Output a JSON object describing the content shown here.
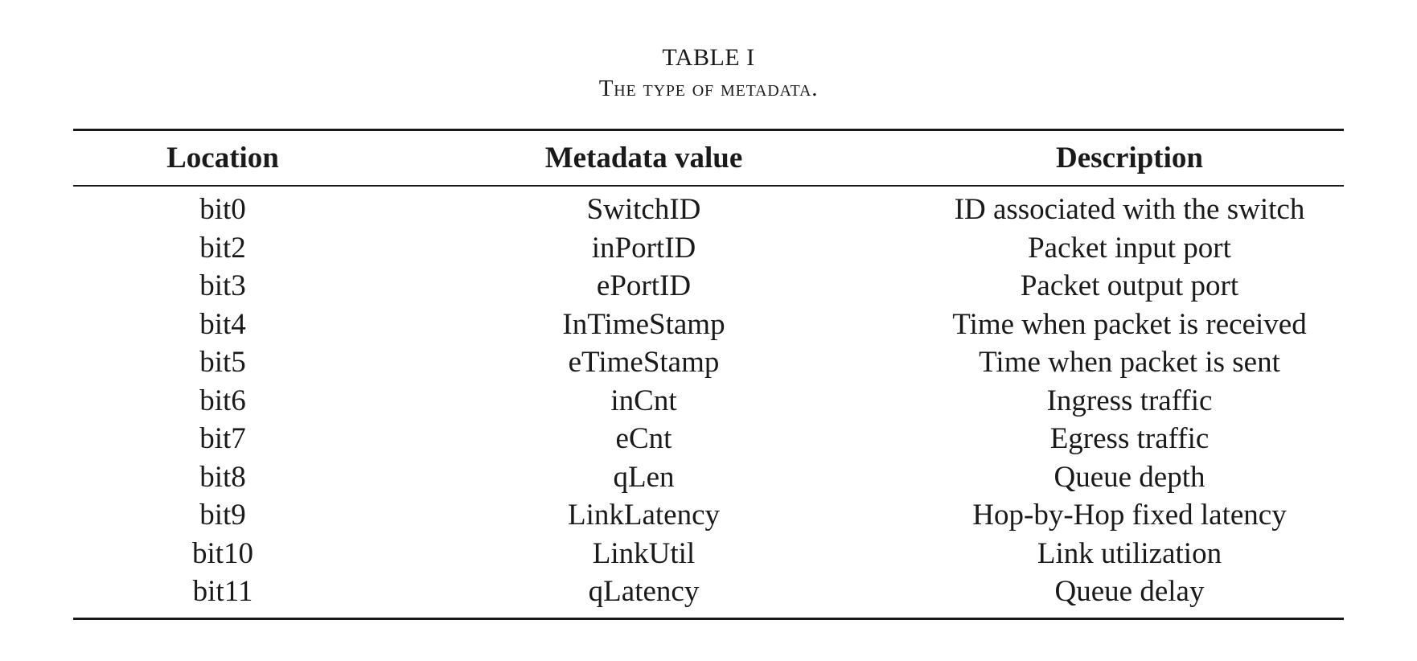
{
  "caption": {
    "label": "TABLE I",
    "title": "The type of metadata."
  },
  "table": {
    "headers": [
      "Location",
      "Metadata value",
      "Description"
    ],
    "rows": [
      [
        "bit0",
        "SwitchID",
        "ID associated with the switch"
      ],
      [
        "bit2",
        "inPortID",
        "Packet input port"
      ],
      [
        "bit3",
        "ePortID",
        "Packet output port"
      ],
      [
        "bit4",
        "InTimeStamp",
        "Time when packet is received"
      ],
      [
        "bit5",
        "eTimeStamp",
        "Time when packet is sent"
      ],
      [
        "bit6",
        "inCnt",
        "Ingress traffic"
      ],
      [
        "bit7",
        "eCnt",
        "Egress traffic"
      ],
      [
        "bit8",
        "qLen",
        "Queue depth"
      ],
      [
        "bit9",
        "LinkLatency",
        "Hop-by-Hop fixed latency"
      ],
      [
        "bit10",
        "LinkUtil",
        "Link utilization"
      ],
      [
        "bit11",
        "qLatency",
        "Queue delay"
      ]
    ]
  }
}
